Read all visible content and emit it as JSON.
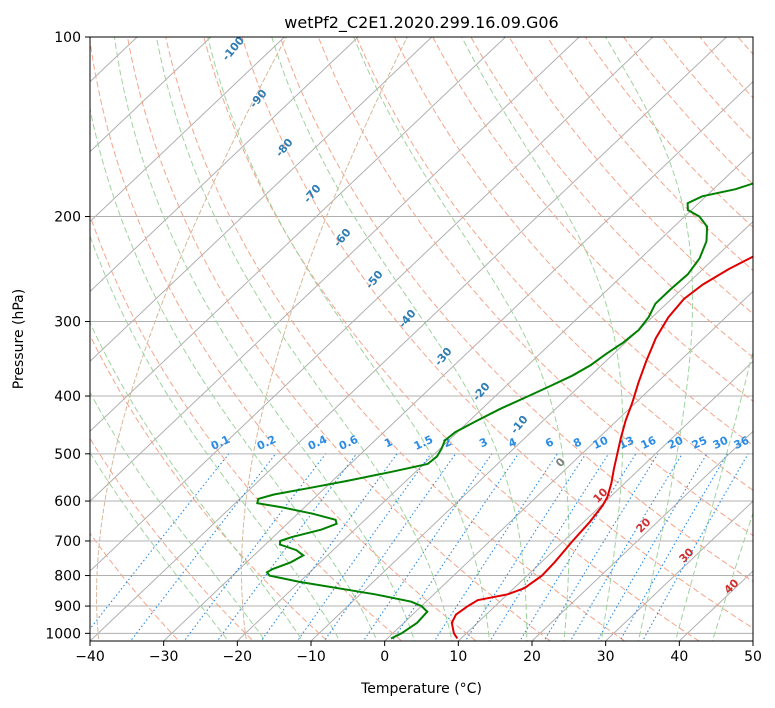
{
  "chart_data": {
    "type": "line",
    "title": "wetPf2_C2E1.2020.299.16.09.G06",
    "xlabel": "Temperature (°C)",
    "ylabel": "Pressure (hPa)",
    "xlim": [
      -40,
      50
    ],
    "ylim": [
      1030,
      100
    ],
    "y_scale": "log",
    "x_ticks": [
      -40,
      -30,
      -20,
      -10,
      0,
      10,
      20,
      30,
      40,
      50
    ],
    "y_ticks": [
      100,
      200,
      300,
      400,
      500,
      600,
      700,
      800,
      900,
      1000
    ],
    "grid": true,
    "series": [
      {
        "color": "#e00000",
        "points": [
          [
            9.5,
            1020
          ],
          [
            8.3,
            1000
          ],
          [
            6.5,
            960
          ],
          [
            5.9,
            930
          ],
          [
            6.3,
            900
          ],
          [
            6.8,
            880
          ],
          [
            10,
            860
          ],
          [
            11.4,
            840
          ],
          [
            12.0,
            800
          ],
          [
            11.8,
            760
          ],
          [
            11.2,
            700
          ],
          [
            10.8,
            650
          ],
          [
            10.2,
            610
          ],
          [
            9.6,
            590
          ],
          [
            8.2,
            560
          ],
          [
            6.5,
            530
          ],
          [
            4.8,
            500
          ],
          [
            3.0,
            470
          ],
          [
            1.2,
            440
          ],
          [
            -0.5,
            410
          ],
          [
            -2.5,
            380
          ],
          [
            -4.5,
            350
          ],
          [
            -6.5,
            320
          ],
          [
            -7.8,
            295
          ],
          [
            -8.3,
            275
          ],
          [
            -7.8,
            260
          ],
          [
            -6.5,
            245
          ],
          [
            -4.5,
            230
          ],
          [
            -1.5,
            215
          ],
          [
            2.0,
            205
          ],
          [
            5.0,
            197
          ],
          [
            7.0,
            190
          ],
          [
            9.0,
            180
          ],
          [
            11.0,
            170
          ],
          [
            13.0,
            160
          ],
          [
            14.0,
            150
          ],
          [
            15.5,
            143
          ],
          [
            17.0,
            136
          ],
          [
            18.0,
            130
          ],
          [
            18.8,
            125
          ],
          [
            19.6,
            120
          ],
          [
            20.3,
            115
          ],
          [
            20.8,
            110
          ],
          [
            21.2,
            105
          ],
          [
            21.8,
            100
          ]
        ]
      },
      {
        "color": "#008000",
        "points": [
          [
            0.5,
            1020
          ],
          [
            1.2,
            1000
          ],
          [
            1.8,
            960
          ],
          [
            1.6,
            920
          ],
          [
            0,
            900
          ],
          [
            -2.0,
            885
          ],
          [
            -8.0,
            860
          ],
          [
            -20.0,
            820
          ],
          [
            -25.0,
            800
          ],
          [
            -25.8,
            790
          ],
          [
            -25.5,
            780
          ],
          [
            -24.0,
            760
          ],
          [
            -23.3,
            740
          ],
          [
            -25.0,
            725
          ],
          [
            -28.0,
            710
          ],
          [
            -28.5,
            700
          ],
          [
            -27.5,
            690
          ],
          [
            -24.5,
            670
          ],
          [
            -23.3,
            655
          ],
          [
            -24.0,
            645
          ],
          [
            -28.0,
            630
          ],
          [
            -33.0,
            615
          ],
          [
            -37.0,
            605
          ],
          [
            -37.5,
            595
          ],
          [
            -36.0,
            585
          ],
          [
            -32.0,
            570
          ],
          [
            -28.0,
            555
          ],
          [
            -23.0,
            535
          ],
          [
            -19.5,
            520
          ],
          [
            -19.3,
            505
          ],
          [
            -19.8,
            490
          ],
          [
            -20.5,
            475
          ],
          [
            -20.3,
            460
          ],
          [
            -19.0,
            440
          ],
          [
            -17.5,
            420
          ],
          [
            -15.5,
            400
          ],
          [
            -14.0,
            385
          ],
          [
            -12.5,
            370
          ],
          [
            -11.5,
            355
          ],
          [
            -11.0,
            340
          ],
          [
            -10.3,
            325
          ],
          [
            -10.0,
            310
          ],
          [
            -10.5,
            295
          ],
          [
            -11.5,
            280
          ],
          [
            -11.5,
            265
          ],
          [
            -11.3,
            250
          ],
          [
            -12.0,
            235
          ],
          [
            -13.5,
            220
          ],
          [
            -15.5,
            208
          ],
          [
            -18.0,
            200
          ],
          [
            -20.5,
            195
          ],
          [
            -21.5,
            190
          ],
          [
            -20.5,
            185
          ],
          [
            -17.0,
            180
          ],
          [
            -15.0,
            175
          ],
          [
            -14.5,
            170
          ],
          [
            -13.8,
            165
          ],
          [
            -12.5,
            160
          ],
          [
            -10.0,
            155
          ],
          [
            -7.0,
            150
          ],
          [
            -5.3,
            145
          ],
          [
            -4.5,
            140
          ],
          [
            -3.5,
            135
          ],
          [
            -2.0,
            130
          ],
          [
            -0.8,
            125
          ],
          [
            0.5,
            120
          ],
          [
            1.3,
            115
          ],
          [
            2.0,
            110
          ],
          [
            3.0,
            105
          ],
          [
            4.0,
            100
          ]
        ]
      }
    ],
    "dry_adiabat_labels": [
      "-100",
      "-90",
      "-80",
      "-70",
      "-60",
      "-50",
      "-40",
      "-30",
      "-20",
      "-10"
    ],
    "mixing_ratio_labels": [
      "0.1",
      "0.2",
      "0.4",
      "0.6",
      "1",
      "1.5",
      "2",
      "3",
      "4",
      "6",
      "8",
      "10",
      "13",
      "16",
      "20",
      "25",
      "30",
      "36"
    ],
    "moist_adiabat_labels": [
      "0",
      "10",
      "20",
      "30",
      "40"
    ],
    "colors": {
      "isotherm": "#b0b0b0",
      "dry_adiabat": "#f4a58a",
      "moist_adiabat": "#9fd39f",
      "mixing_ratio": "#2b8ce6",
      "dry_adiabat_label": "#2e7db5",
      "mixing_ratio_label": "#2b8ce6",
      "moist_adiabat_label": "#d03030",
      "zero_label": "#808080",
      "curve_dry": "#d8b89a"
    }
  }
}
